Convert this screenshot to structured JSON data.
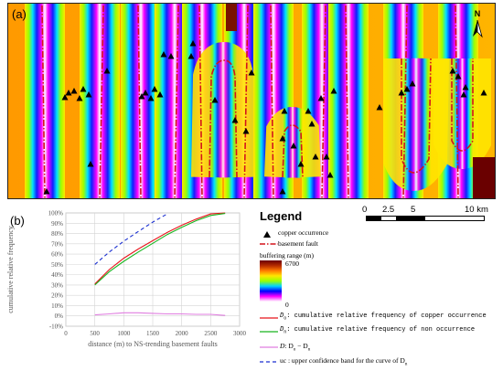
{
  "panels": {
    "a": "(a)",
    "b": "(b)"
  },
  "north_label": "N",
  "scale": {
    "ticks": [
      "0",
      "2.5",
      "5",
      "10 km"
    ]
  },
  "legend": {
    "title": "Legend",
    "copper": "copper occurrence",
    "fault": "basement fault",
    "buffer_title": "buffering range (m)",
    "buffer_max": "6700",
    "buffer_min": "0",
    "do": "D",
    "do_sub": "o",
    "do_text": ": cumulative relative frequency of copper occurrence",
    "dn": "D",
    "dn_sub": "n",
    "dn_text": ": cumulative relative frequency of non occurrence",
    "d": "D",
    "d_text": ":  D",
    "d_text_o": "o",
    "d_minus": " − D",
    "d_text_n": "n",
    "uc": "uc : upper confidence band for the curve of D",
    "uc_sub": "n"
  },
  "colors": {
    "do_line": "#e8151b",
    "dn_line": "#18b51f",
    "d_line": "#e07ee0",
    "uc_line": "#1a2fd0",
    "fault": "#d4131b"
  },
  "chart_data": {
    "type": "line",
    "xlabel": "distance (m) to NS-trending basement faults",
    "ylabel": "cumulative relative frequency",
    "xlim": [
      0,
      3000
    ],
    "ylim": [
      -10,
      100
    ],
    "xticks": [
      "0",
      "500",
      "1000",
      "1500",
      "2000",
      "2500",
      "3000"
    ],
    "yticks": [
      "-10%",
      "0%",
      "10%",
      "20%",
      "30%",
      "40%",
      "50%",
      "60%",
      "70%",
      "80%",
      "90%",
      "100%"
    ],
    "grid": true,
    "series": [
      {
        "name": "Do",
        "color": "#e8151b",
        "dash": "",
        "x": [
          500,
          750,
          1000,
          1250,
          1500,
          1750,
          2000,
          2250,
          2500,
          2750
        ],
        "y": [
          31,
          45,
          56,
          65,
          73,
          81,
          88,
          94,
          99,
          100
        ]
      },
      {
        "name": "Dn",
        "color": "#18b51f",
        "dash": "",
        "x": [
          500,
          750,
          1000,
          1250,
          1500,
          1750,
          2000,
          2250,
          2500,
          2750
        ],
        "y": [
          30,
          43,
          53,
          62,
          70.5,
          79,
          86,
          92.5,
          97.5,
          99.5
        ]
      },
      {
        "name": "D",
        "color": "#e07ee0",
        "dash": "",
        "x": [
          500,
          750,
          1000,
          1250,
          1500,
          1750,
          2000,
          2250,
          2500,
          2750
        ],
        "y": [
          1,
          2,
          3,
          3,
          2.5,
          2,
          2,
          1.5,
          1.5,
          0.5
        ]
      },
      {
        "name": "uc",
        "color": "#1a2fd0",
        "dash": "4,3",
        "x": [
          500,
          750,
          1000,
          1250,
          1500,
          1750
        ],
        "y": [
          50,
          62,
          72.5,
          82,
          91,
          99
        ]
      }
    ]
  }
}
